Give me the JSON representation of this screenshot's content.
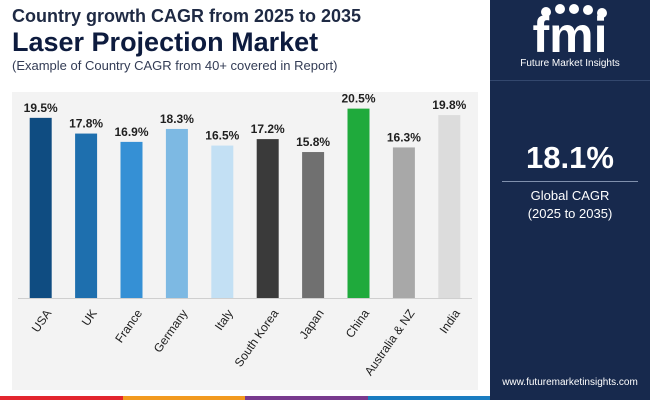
{
  "header": {
    "supertitle": "Country growth CAGR from 2025 to 2035",
    "title": "Laser Projection Market",
    "subtitle": "(Example of Country CAGR from 40+ covered in Report)"
  },
  "brand": {
    "logo_text": "fmi",
    "name": "Future Market Insights",
    "website": "www.futuremarketinsights.com"
  },
  "highlight": {
    "value": "18.1%",
    "label": "Global CAGR",
    "period": "(2025 to 2035)"
  },
  "colors": {
    "panel": "#17294d",
    "footer": [
      "#e3262e",
      "#f29a1f",
      "#7a3b8f",
      "#1b7ec2"
    ]
  },
  "chart_data": {
    "type": "bar",
    "title": "",
    "xlabel": "",
    "ylabel": "",
    "ylim": [
      0,
      21
    ],
    "grid": false,
    "legend": "none",
    "categories": [
      "USA",
      "UK",
      "France",
      "Germany",
      "Italy",
      "South Korea",
      "Japan",
      "China",
      "Australia & NZ",
      "India"
    ],
    "values": [
      19.5,
      17.8,
      16.9,
      18.3,
      16.5,
      17.2,
      15.8,
      20.5,
      16.3,
      19.8
    ],
    "labels": [
      "19.5%",
      "17.8%",
      "16.9%",
      "18.3%",
      "16.5%",
      "17.2%",
      "15.8%",
      "20.5%",
      "16.3%",
      "19.8%"
    ],
    "colors": [
      "#0f4c81",
      "#1e6fae",
      "#3590d5",
      "#7db9e3",
      "#c3e0f4",
      "#3a3a3a",
      "#707070",
      "#1faa3c",
      "#a8a8a8",
      "#dcdcdc"
    ]
  }
}
